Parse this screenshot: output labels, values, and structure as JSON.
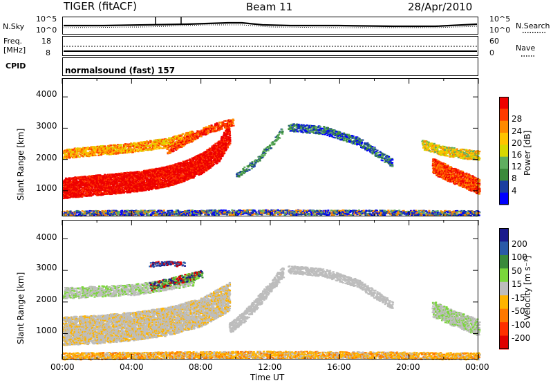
{
  "header": {
    "radar": "TIGER (fitACF)",
    "beam": "Beam 11",
    "date": "28/Apr/2010"
  },
  "noise_panel": {
    "left_label": "N.Sky",
    "right_label": "N.Search",
    "left_ticks": [
      "10^5",
      "10^0"
    ],
    "right_ticks": [
      "10^5",
      "10^0"
    ]
  },
  "freq_panel": {
    "left_label_top": "Freq.",
    "left_label_bottom": "[MHz]",
    "left_ticks": [
      "18",
      "8"
    ],
    "right_label": "Nave",
    "right_ticks": [
      "60",
      "0"
    ]
  },
  "cpid_panel": {
    "label": "CPID",
    "text": "normalsound (fast) 157"
  },
  "power_colorbar": {
    "title": "Power [dB]",
    "ticks": [
      "28",
      "24",
      "20",
      "16",
      "12",
      "8",
      "4"
    ],
    "colors": [
      "#ee0000",
      "#ff3a00",
      "#ff8a00",
      "#ffc400",
      "#d8d800",
      "#5fae5f",
      "#3a8a3a",
      "#1b3fa0",
      "#0000ff"
    ]
  },
  "velocity_colorbar": {
    "title": "Velocity [m s⁻¹]",
    "ticks": [
      "200",
      "100",
      "50",
      "15",
      "-15",
      "-50",
      "-100",
      "-200"
    ],
    "colors": [
      "#1a1a8c",
      "#2a5aa8",
      "#3a8a3a",
      "#7ad63a",
      "#bdbdbd",
      "#ffb400",
      "#ff7800",
      "#ff3000",
      "#e00000"
    ]
  },
  "chart_data": [
    {
      "type": "heatmap",
      "panel": "power",
      "ylabel": "Slant Range [km]",
      "yticks": [
        "4000",
        "3000",
        "2000",
        "1000"
      ],
      "ylim": [
        180,
        4600
      ],
      "xlim": [
        "00:00",
        "24:00"
      ],
      "series": [
        {
          "x_hour": [
            0,
            2,
            4,
            6,
            8,
            9.6
          ],
          "range_km": [
            1150,
            1250,
            1350,
            1500,
            1900,
            2900
          ]
        },
        {
          "x_hour": [
            21.3,
            22.5,
            24
          ],
          "range_km": [
            1800,
            1500,
            1150
          ]
        },
        {
          "x_hour": [
            13,
            15,
            17,
            19
          ],
          "range_km": [
            3050,
            2950,
            2600,
            1900
          ]
        }
      ]
    },
    {
      "type": "heatmap",
      "panel": "velocity",
      "ylabel": "Slant Range [km]",
      "yticks": [
        "4000",
        "3000",
        "2000",
        "1000"
      ],
      "ylim": [
        180,
        4600
      ],
      "xlabel": "Time UT",
      "xticks": [
        "00:00",
        "04:00",
        "08:00",
        "12:00",
        "16:00",
        "20:00",
        "00:00"
      ]
    }
  ]
}
